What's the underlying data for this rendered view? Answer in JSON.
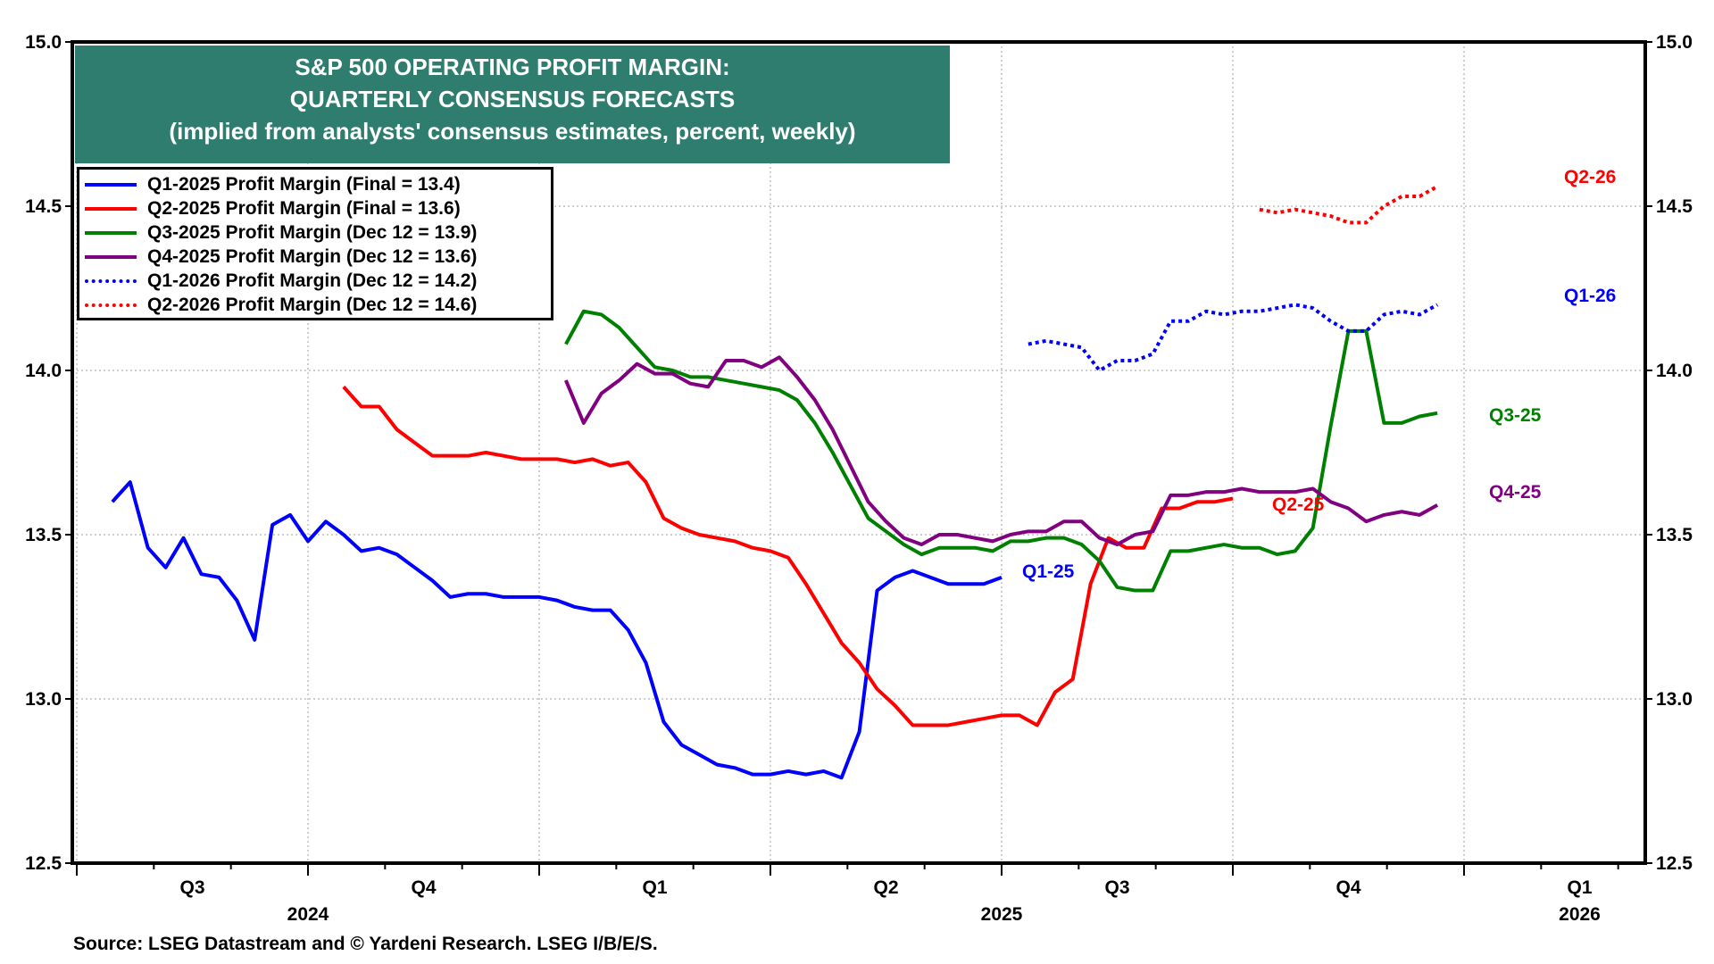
{
  "title": {
    "line1": "S&P 500 OPERATING PROFIT MARGIN:",
    "line2": "QUARTERLY CONSENSUS FORECASTS",
    "line3": "(implied from analysts' consensus estimates, percent, weekly)"
  },
  "source": "Source: LSEG Datastream and © Yardeni Research. LSEG I/B/E/S.",
  "chart_data": {
    "type": "line",
    "title": "S&P 500 OPERATING PROFIT MARGIN: QUARTERLY CONSENSUS FORECASTS",
    "subtitle": "(implied from analysts' consensus estimates, percent, weekly)",
    "xlabel": "",
    "ylabel": "percent",
    "x_unit": "weeks since start of Q3 2024",
    "xlim": [
      0,
      91
    ],
    "ylim": [
      12.5,
      15.0
    ],
    "y_ticks": [
      "12.5",
      "13.0",
      "13.5",
      "14.0",
      "14.5",
      "15.0"
    ],
    "x_quarter_labels": [
      {
        "label": "Q3",
        "at": 6.5
      },
      {
        "label": "Q4",
        "at": 19.5
      },
      {
        "label": "Q1",
        "at": 32.5
      },
      {
        "label": "Q2",
        "at": 45.5
      },
      {
        "label": "Q3",
        "at": 58.5
      },
      {
        "label": "Q4",
        "at": 71.5
      },
      {
        "label": "Q1",
        "at": 84.5
      }
    ],
    "x_year_labels": [
      {
        "label": "2024",
        "at": 13
      },
      {
        "label": "2025",
        "at": 52
      },
      {
        "label": "2026",
        "at": 84.5
      }
    ],
    "grid": true,
    "legend_position": "top-left",
    "series": [
      {
        "name": "Q1-2025 Profit Margin (Final = 13.4)",
        "end_label": "Q1-25",
        "color": "#0000ff",
        "style": "solid",
        "start": 2,
        "values": [
          13.6,
          13.66,
          13.46,
          13.4,
          13.49,
          13.38,
          13.37,
          13.3,
          13.18,
          13.53,
          13.56,
          13.48,
          13.54,
          13.5,
          13.45,
          13.46,
          13.44,
          13.4,
          13.36,
          13.31,
          13.32,
          13.32,
          13.31,
          13.31,
          13.31,
          13.3,
          13.28,
          13.27,
          13.27,
          13.21,
          13.11,
          12.93,
          12.86,
          12.83,
          12.8,
          12.79,
          12.77,
          12.77,
          12.78,
          12.77,
          12.78,
          12.76,
          12.9,
          13.33,
          13.37,
          13.39,
          13.37,
          13.35,
          13.35,
          13.35,
          13.37
        ]
      },
      {
        "name": "Q2-2025 Profit Margin (Final = 13.6)",
        "end_label": "Q2-25",
        "color": "#ff0000",
        "style": "solid",
        "start": 15,
        "values": [
          13.95,
          13.89,
          13.89,
          13.82,
          13.78,
          13.74,
          13.74,
          13.74,
          13.75,
          13.74,
          13.73,
          13.73,
          13.73,
          13.72,
          13.73,
          13.71,
          13.72,
          13.66,
          13.55,
          13.52,
          13.5,
          13.49,
          13.48,
          13.46,
          13.45,
          13.43,
          13.35,
          13.26,
          13.17,
          13.11,
          13.03,
          12.98,
          12.92,
          12.92,
          12.92,
          12.93,
          12.94,
          12.95,
          12.95,
          12.92,
          13.02,
          13.06,
          13.35,
          13.49,
          13.46,
          13.46,
          13.58,
          13.58,
          13.6,
          13.6,
          13.61
        ]
      },
      {
        "name": "Q3-2025 Profit Margin (Dec 12 = 13.9)",
        "end_label": "Q3-25",
        "color": "#008000",
        "style": "solid",
        "start": 27.5,
        "values": [
          14.08,
          14.18,
          14.17,
          14.13,
          14.07,
          14.01,
          14.0,
          13.98,
          13.98,
          13.97,
          13.96,
          13.95,
          13.94,
          13.91,
          13.84,
          13.75,
          13.65,
          13.55,
          13.51,
          13.47,
          13.44,
          13.46,
          13.46,
          13.46,
          13.45,
          13.48,
          13.48,
          13.49,
          13.49,
          13.47,
          13.42,
          13.34,
          13.33,
          13.33,
          13.45,
          13.45,
          13.46,
          13.47,
          13.46,
          13.46,
          13.44,
          13.45,
          13.52,
          13.83,
          14.12,
          14.12,
          13.84,
          13.84,
          13.86,
          13.87
        ]
      },
      {
        "name": "Q4-2025 Profit Margin (Dec 12 = 13.6)",
        "end_label": "Q4-25",
        "color": "#800080",
        "style": "solid",
        "start": 27.5,
        "values": [
          13.97,
          13.84,
          13.93,
          13.97,
          14.02,
          13.99,
          13.99,
          13.96,
          13.95,
          14.03,
          14.03,
          14.01,
          14.04,
          13.98,
          13.91,
          13.82,
          13.71,
          13.6,
          13.54,
          13.49,
          13.47,
          13.5,
          13.5,
          13.49,
          13.48,
          13.5,
          13.51,
          13.51,
          13.54,
          13.54,
          13.49,
          13.47,
          13.5,
          13.51,
          13.62,
          13.62,
          13.63,
          13.63,
          13.64,
          13.63,
          13.63,
          13.63,
          13.64,
          13.6,
          13.58,
          13.54,
          13.56,
          13.57,
          13.56,
          13.59
        ]
      },
      {
        "name": "Q1-2026 Profit Margin (Dec 12 = 14.2)",
        "end_label": "Q1-26",
        "color": "#0000ff",
        "style": "dotted",
        "start": 53.5,
        "values": [
          14.08,
          14.09,
          14.08,
          14.07,
          14.0,
          14.03,
          14.03,
          14.05,
          14.15,
          14.15,
          14.18,
          14.17,
          14.18,
          14.18,
          14.19,
          14.2,
          14.19,
          14.15,
          14.12,
          14.12,
          14.17,
          14.18,
          14.17,
          14.2
        ]
      },
      {
        "name": "Q2-2026 Profit Margin (Dec 12 = 14.6)",
        "end_label": "Q2-26",
        "color": "#ff0000",
        "style": "dotted",
        "start": 66.5,
        "values": [
          14.49,
          14.48,
          14.49,
          14.48,
          14.47,
          14.45,
          14.45,
          14.5,
          14.53,
          14.53,
          14.56
        ]
      }
    ]
  }
}
